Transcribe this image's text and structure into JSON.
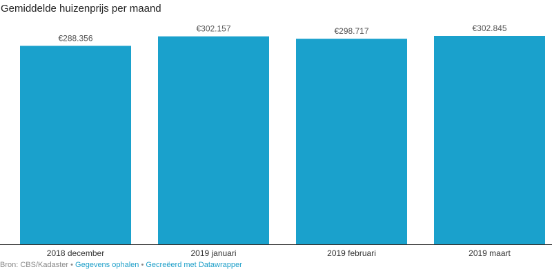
{
  "chart_data": {
    "type": "bar",
    "title": "Gemiddelde huizenprijs per maand",
    "categories": [
      "2018 december",
      "2019 januari",
      "2019 februari",
      "2019 maart"
    ],
    "values": [
      288356,
      302157,
      298717,
      302845
    ],
    "value_labels": [
      "€288.356",
      "€302.157",
      "€298.717",
      "€302.845"
    ],
    "ylim": [
      0,
      302845
    ],
    "bar_color": "#1aa1cc",
    "grid": false
  },
  "footer": {
    "source": "Bron: CBS/Kadaster",
    "separator": " • ",
    "get_data": "Gegevens ophalen",
    "created_with": "Gecreëerd met Datawrapper"
  },
  "colors": {
    "bar": "#1aa1cc",
    "link": "#1d9fc9",
    "text": "#222222",
    "muted": "#888888"
  }
}
